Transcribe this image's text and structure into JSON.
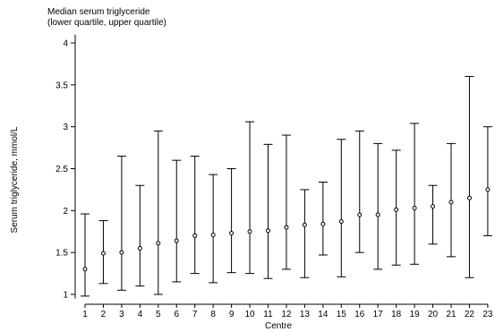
{
  "chart_data": {
    "type": "scatter",
    "title": "Median serum triglyceride",
    "subtitle": "(lower quartile, upper quartile)",
    "xlabel": "Centre",
    "ylabel": "Serum triglyceride, mmol/L",
    "ylim": [
      0.95,
      4.1
    ],
    "yticks": [
      1,
      1.5,
      2,
      2.5,
      3,
      3.5,
      4
    ],
    "ytick_labels": [
      "1",
      "1.5",
      "2",
      "2.5",
      "3",
      "3.5",
      "4"
    ],
    "grid": false,
    "categories": [
      "1",
      "2",
      "3",
      "4",
      "5",
      "6",
      "7",
      "8",
      "9",
      "10",
      "11",
      "12",
      "13",
      "14",
      "15",
      "16",
      "17",
      "18",
      "19",
      "20",
      "21",
      "22",
      "23"
    ],
    "series": [
      {
        "median": [
          1.3,
          1.49,
          1.5,
          1.55,
          1.61,
          1.64,
          1.7,
          1.71,
          1.73,
          1.75,
          1.76,
          1.8,
          1.83,
          1.84,
          1.87,
          1.95,
          1.95,
          2.01,
          2.03,
          2.05,
          2.1,
          2.15,
          2.25
        ],
        "lower_quartile": [
          0.98,
          1.13,
          1.05,
          1.1,
          1.0,
          1.15,
          1.25,
          1.14,
          1.26,
          1.25,
          1.19,
          1.3,
          1.2,
          1.47,
          1.21,
          1.5,
          1.3,
          1.35,
          1.36,
          1.6,
          1.45,
          1.2,
          1.7
        ],
        "upper_quartile": [
          1.96,
          1.88,
          2.65,
          2.3,
          2.95,
          2.6,
          2.65,
          2.43,
          2.5,
          3.06,
          2.79,
          2.9,
          2.25,
          2.34,
          2.85,
          2.95,
          2.8,
          2.72,
          3.04,
          2.3,
          2.8,
          3.6,
          3.0
        ]
      }
    ]
  }
}
